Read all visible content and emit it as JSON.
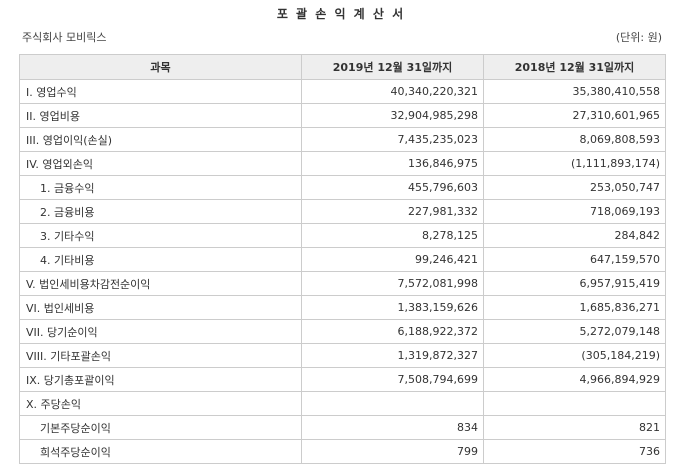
{
  "title": "포 괄 손 익 계 산 서",
  "company": "주식회사 모비릭스",
  "unit": "(단위: 원)",
  "headers": [
    "과목",
    "2019년 12월 31일까지",
    "2018년 12월 31일까지"
  ],
  "rows": [
    {
      "name": "I. 영업수익",
      "v2019": "40,340,220,321",
      "v2018": "35,380,410,558",
      "indent": 0
    },
    {
      "name": "II. 영업비용",
      "v2019": "32,904,985,298",
      "v2018": "27,310,601,965",
      "indent": 0
    },
    {
      "name": "III. 영업이익(손실)",
      "v2019": "7,435,235,023",
      "v2018": "8,069,808,593",
      "indent": 0
    },
    {
      "name": "IV. 영업외손익",
      "v2019": "136,846,975",
      "v2018": "(1,111,893,174)",
      "indent": 0
    },
    {
      "name": "1. 금융수익",
      "v2019": "455,796,603",
      "v2018": "253,050,747",
      "indent": 1
    },
    {
      "name": "2. 금융비용",
      "v2019": "227,981,332",
      "v2018": "718,069,193",
      "indent": 1
    },
    {
      "name": "3. 기타수익",
      "v2019": "8,278,125",
      "v2018": "284,842",
      "indent": 1
    },
    {
      "name": "4. 기타비용",
      "v2019": "99,246,421",
      "v2018": "647,159,570",
      "indent": 1
    },
    {
      "name": "V. 법인세비용차감전순이익",
      "v2019": "7,572,081,998",
      "v2018": "6,957,915,419",
      "indent": 0
    },
    {
      "name": "VI. 법인세비용",
      "v2019": "1,383,159,626",
      "v2018": "1,685,836,271",
      "indent": 0
    },
    {
      "name": "VII. 당기순이익",
      "v2019": "6,188,922,372",
      "v2018": "5,272,079,148",
      "indent": 0
    },
    {
      "name": "VIII. 기타포괄손익",
      "v2019": "1,319,872,327",
      "v2018": "(305,184,219)",
      "indent": 0
    },
    {
      "name": "IX. 당기총포괄이익",
      "v2019": "7,508,794,699",
      "v2018": "4,966,894,929",
      "indent": 0
    },
    {
      "name": "X. 주당손익",
      "v2019": "",
      "v2018": "",
      "indent": 0
    },
    {
      "name": "기본주당순이익",
      "v2019": "834",
      "v2018": "821",
      "indent": 2
    },
    {
      "name": "희석주당순이익",
      "v2019": "799",
      "v2018": "736",
      "indent": 2
    }
  ]
}
